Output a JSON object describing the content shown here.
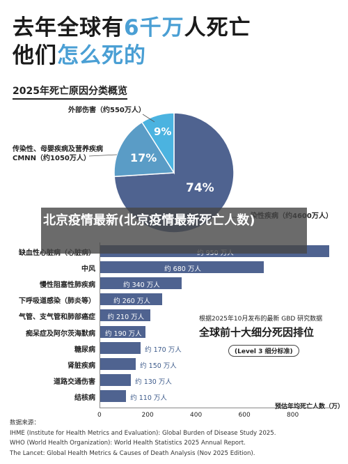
{
  "headline": {
    "line1_a": "去年全球有",
    "line1_b": "6千万",
    "line1_c": "人死亡",
    "line2_a": "他们",
    "line2_b": "怎么死的"
  },
  "overlay": {
    "text": "北京疫情最新(北京疫情最新死亡人数)"
  },
  "gbd_note": "根据2025年10月发布的最新 GBD 研究数据",
  "rank_title": "全球前十大细分死因排位",
  "rank_sub": "(Level 3 细分标准)",
  "sources": {
    "title": "数据来源：",
    "lines": [
      "IHME (Institute for Health Metrics and Evaluation): Global Burden of Disease Study 2025.",
      "WHO (World Health Organization): World Health Statistics 2025 Annual Report.",
      "The Lancet: Global Health Metrics & Causes of Death Analysis (Nov 2025 Edition)."
    ]
  },
  "colors": {
    "ncd": "#4f6390",
    "cmnn": "#5a9cc6",
    "injury": "#4bb3e0",
    "bar": "#4f6390",
    "accent": "#4a9fd4"
  },
  "chart_data": [
    {
      "type": "pie",
      "title": "2025年死亡原因分类概览",
      "slices": [
        {
          "label": "非传染性疾病（约4600万人）",
          "label_visible": "染性疾病（约4600万人）",
          "value": 74,
          "value_label": "74%"
        },
        {
          "label": "传染性、母婴疾病及营养疾病 CMNN（约1050万人）",
          "label_line1": "传染性、母婴疾病及营养疾病",
          "label_line2": "CMNN（约1050万人）",
          "value": 17,
          "value_label": "17%"
        },
        {
          "label": "外部伤害（约550万人）",
          "value": 9,
          "value_label": "9%"
        }
      ]
    },
    {
      "type": "bar",
      "orientation": "horizontal",
      "title": "全球前十大细分死因排位",
      "xlabel": "预估年均死亡人数（万）",
      "xlim": [
        0,
        1000
      ],
      "xticks": [
        "0",
        "200",
        "400",
        "600",
        "800"
      ],
      "categories": [
        "缺血性心脏病（心脏病）",
        "中风",
        "慢性阻塞性肺疾病",
        "下呼吸道感染（肺炎等）",
        "气管、支气管和肺部癌症",
        "痴呆症及阿尔茨海默病",
        "糖尿病",
        "肾脏疾病",
        "道路交通伤害",
        "结核病"
      ],
      "values": [
        950,
        680,
        340,
        260,
        210,
        190,
        170,
        150,
        130,
        110
      ],
      "value_labels": [
        "约 950 万人",
        "约 680 万人",
        "约 340 万人",
        "约 260 万人",
        "约 210 万人",
        "约 190 万人",
        "约 170 万人",
        "约 150 万人",
        "约 130 万人",
        "约 110 万人"
      ]
    }
  ]
}
